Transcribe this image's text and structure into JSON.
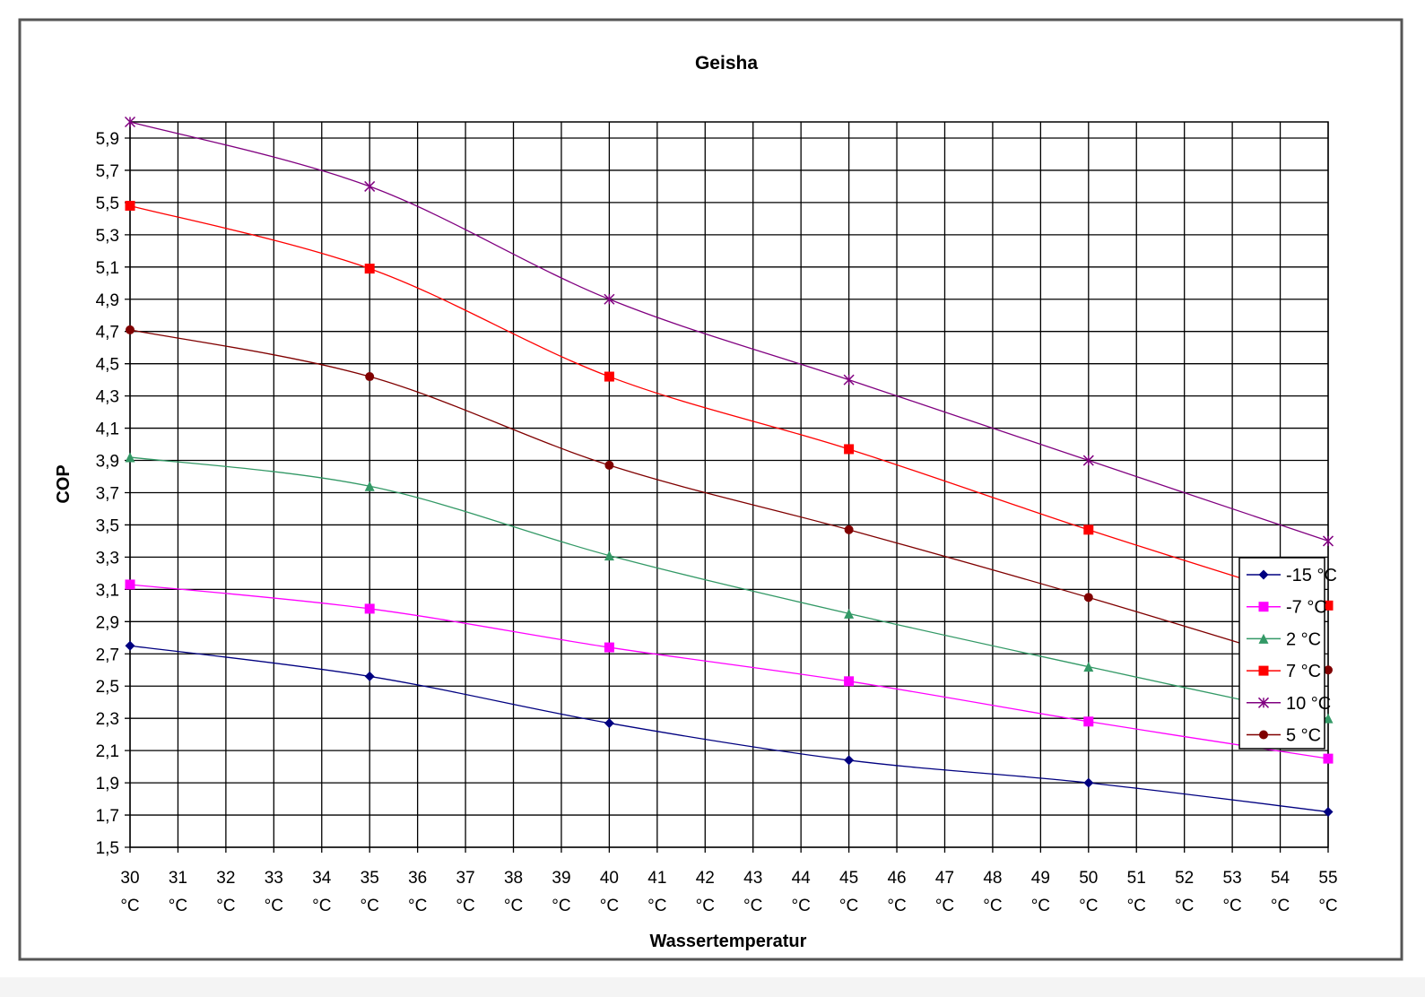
{
  "chart_data": {
    "type": "line",
    "title": "Geisha",
    "xlabel": "Wassertemperatur",
    "ylabel": "COP",
    "x": [
      30,
      31,
      32,
      33,
      34,
      35,
      36,
      37,
      38,
      39,
      40,
      41,
      42,
      43,
      44,
      45,
      46,
      47,
      48,
      49,
      50,
      51,
      52,
      53,
      54,
      55
    ],
    "x_tick_unit": "°C",
    "ylim": [
      1.5,
      6.0
    ],
    "y_ticks": [
      "1,5",
      "1,7",
      "1,9",
      "2,1",
      "2,3",
      "2,5",
      "2,7",
      "2,9",
      "3,1",
      "3,3",
      "3,5",
      "3,7",
      "3,9",
      "4,1",
      "4,3",
      "4,5",
      "4,7",
      "4,9",
      "5,1",
      "5,3",
      "5,5",
      "5,7",
      "5,9"
    ],
    "grid": true,
    "smoothed": true,
    "legend_position": "right",
    "series": [
      {
        "name": "-15 °C",
        "color": "#000080",
        "marker": "diamond",
        "x": [
          30,
          35,
          40,
          45,
          50,
          55
        ],
        "values": [
          2.75,
          2.56,
          2.27,
          2.04,
          1.9,
          1.72
        ]
      },
      {
        "name": "-7 °C",
        "color": "#ff00ff",
        "marker": "square",
        "x": [
          30,
          35,
          40,
          45,
          50,
          55
        ],
        "values": [
          3.13,
          2.98,
          2.74,
          2.53,
          2.28,
          2.05
        ]
      },
      {
        "name": "2 °C",
        "color": "#339966",
        "marker": "triangle",
        "x": [
          30,
          35,
          40,
          45,
          50,
          55
        ],
        "values": [
          3.92,
          3.74,
          3.31,
          2.95,
          2.62,
          2.3
        ]
      },
      {
        "name": "7 °C",
        "color": "#ff0000",
        "marker": "square",
        "x": [
          30,
          35,
          40,
          45,
          50,
          55
        ],
        "values": [
          5.48,
          5.09,
          4.42,
          3.97,
          3.47,
          3.0
        ]
      },
      {
        "name": "10 °C",
        "color": "#800080",
        "marker": "star",
        "x": [
          30,
          35,
          40,
          45,
          50,
          55
        ],
        "values": [
          6.0,
          5.6,
          4.9,
          4.4,
          3.9,
          3.4
        ]
      },
      {
        "name": "5 °C",
        "color": "#800000",
        "marker": "circle",
        "x": [
          30,
          35,
          40,
          45,
          50,
          55
        ],
        "values": [
          4.71,
          4.42,
          3.87,
          3.47,
          3.05,
          2.6
        ]
      }
    ]
  }
}
